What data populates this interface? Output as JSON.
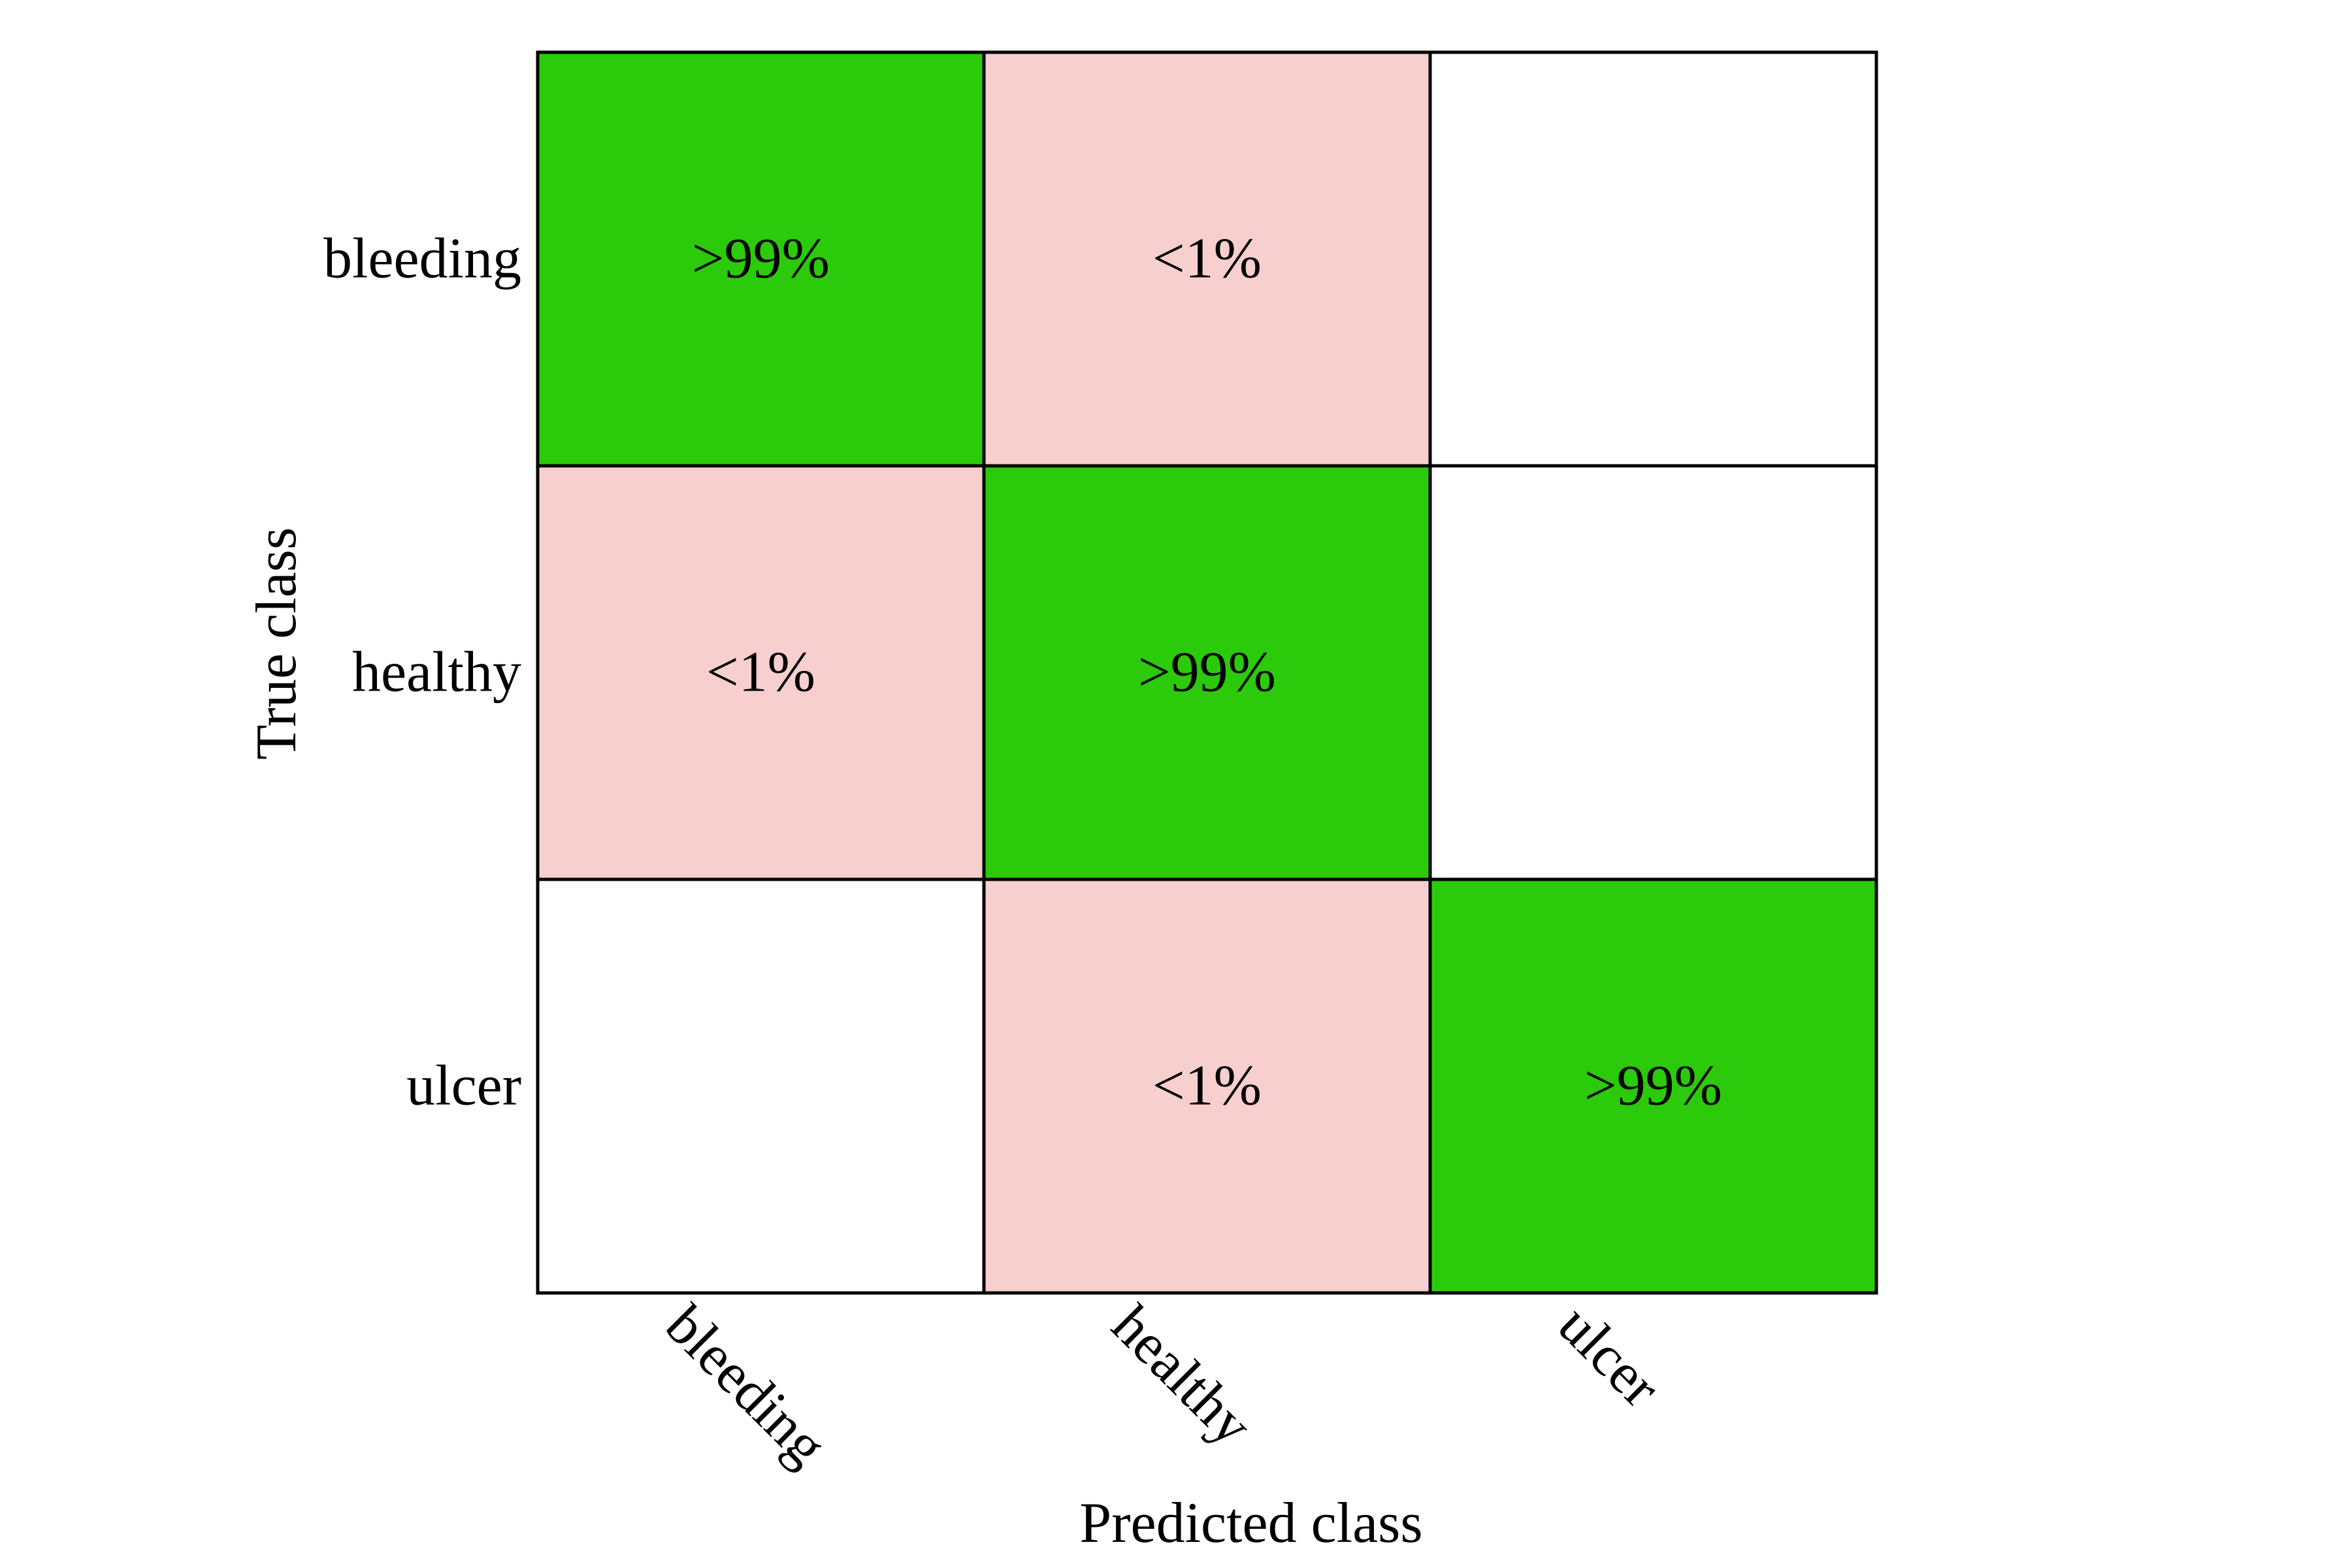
{
  "chart_data": {
    "type": "heatmap",
    "title": "",
    "xlabel": "Predicted class",
    "ylabel": "True class",
    "x_categories": [
      "bleeding",
      "healthy",
      "ulcer"
    ],
    "y_categories": [
      "bleeding",
      "healthy",
      "ulcer"
    ],
    "cells": [
      [
        "&gt;99%",
        "&lt;1%",
        ""
      ],
      [
        "&lt;1%",
        "&gt;99%",
        ""
      ],
      [
        "",
        "&lt;1%",
        "&gt;99%"
      ]
    ],
    "cell_colors": [
      [
        "#2bca0a",
        "#f7cfcf",
        "#ffffff"
      ],
      [
        "#f7cfcf",
        "#2bca0a",
        "#ffffff"
      ],
      [
        "#ffffff",
        "#f7cfcf",
        "#2bca0a"
      ]
    ],
    "colors": {
      "correct": "#2bca0a",
      "misclassified": "#f7cfcf",
      "empty": "#ffffff",
      "border": "#000000"
    }
  }
}
